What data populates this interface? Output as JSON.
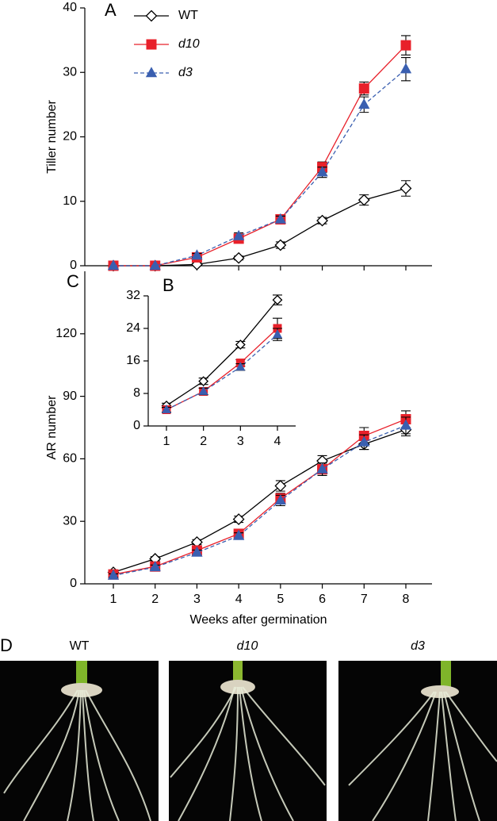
{
  "chart_data": [
    {
      "type": "line",
      "panel_label": "A",
      "ylabel": "Tiller number",
      "x": [
        1,
        2,
        3,
        4,
        5,
        6,
        7,
        8
      ],
      "xlim": [
        0.5,
        8.5
      ],
      "ylim": [
        0,
        40
      ],
      "yticks": [
        0,
        10,
        20,
        30,
        40
      ],
      "legend": "upper left",
      "series": [
        {
          "name": "WT",
          "color": "#000000",
          "marker": "diamond",
          "dash": false,
          "values": [
            0,
            0,
            0.2,
            1.2,
            3.2,
            7,
            10.2,
            12
          ],
          "errors": [
            0,
            0,
            0.2,
            0.3,
            0.5,
            0.5,
            0.8,
            1.2
          ]
        },
        {
          "name": "d10",
          "color": "#e8202a",
          "marker": "square",
          "dash": false,
          "values": [
            0,
            0,
            1.3,
            4.2,
            7.2,
            15.3,
            27.5,
            34.2
          ],
          "errors": [
            0,
            0,
            0.3,
            0.5,
            0.6,
            0.8,
            1,
            1.5
          ]
        },
        {
          "name": "d3",
          "color": "#3a5fb0",
          "marker": "triangle",
          "dash": true,
          "values": [
            0,
            0,
            1.6,
            4.6,
            7.2,
            14.5,
            25,
            30.5
          ],
          "errors": [
            0,
            0,
            0.3,
            0.5,
            0.5,
            0.8,
            1.2,
            1.8
          ]
        }
      ]
    },
    {
      "type": "line",
      "panel_label": "C",
      "ylabel": "AR number",
      "xlabel": "Weeks after germination",
      "x": [
        1,
        2,
        3,
        4,
        5,
        6,
        7,
        8
      ],
      "xlim": [
        0.5,
        8.5
      ],
      "xticks": [
        1,
        2,
        3,
        4,
        5,
        6,
        7,
        8
      ],
      "ylim": [
        0,
        150
      ],
      "yticks": [
        0,
        30,
        60,
        90,
        120
      ],
      "series": [
        {
          "color": "#000000",
          "marker": "diamond",
          "dash": false,
          "values": [
            5.5,
            12,
            20,
            31,
            47,
            59,
            67,
            74
          ],
          "errors": [
            0.8,
            1,
            1.2,
            1.5,
            2.5,
            2.5,
            2.5,
            3
          ]
        },
        {
          "color": "#e8202a",
          "marker": "square",
          "dash": false,
          "values": [
            4.5,
            8.3,
            16,
            24,
            41,
            55,
            71,
            79
          ],
          "errors": [
            0.8,
            1,
            1.2,
            1.5,
            2.5,
            3,
            4,
            4
          ]
        },
        {
          "color": "#3a5fb0",
          "marker": "triangle",
          "dash": true,
          "values": [
            4,
            8,
            15,
            23,
            40,
            55,
            68,
            76
          ],
          "errors": [
            0.8,
            1,
            1.2,
            1.5,
            2.5,
            3,
            3.5,
            4
          ]
        }
      ]
    },
    {
      "type": "line",
      "panel_label": "B",
      "x": [
        1,
        2,
        3,
        4
      ],
      "xlim": [
        0.5,
        4.5
      ],
      "xticks": [
        1,
        2,
        3,
        4
      ],
      "ylim": [
        0,
        32
      ],
      "yticks": [
        0,
        8,
        16,
        24,
        32
      ],
      "series": [
        {
          "color": "#000000",
          "marker": "diamond",
          "dash": false,
          "values": [
            5,
            11,
            20,
            31
          ],
          "errors": [
            0.6,
            0.8,
            0.8,
            1.2
          ]
        },
        {
          "color": "#e8202a",
          "marker": "square",
          "dash": false,
          "values": [
            4,
            8.5,
            15.5,
            24
          ],
          "errors": [
            0.6,
            0.8,
            0.8,
            2.5
          ]
        },
        {
          "color": "#3a5fb0",
          "marker": "triangle",
          "dash": true,
          "values": [
            4,
            8.5,
            14.5,
            22.5
          ],
          "errors": [
            0.6,
            0.8,
            0.8,
            1.5
          ]
        }
      ]
    }
  ],
  "photos": {
    "panel_label": "D",
    "labels": [
      "WT",
      "d10",
      "d3"
    ]
  }
}
